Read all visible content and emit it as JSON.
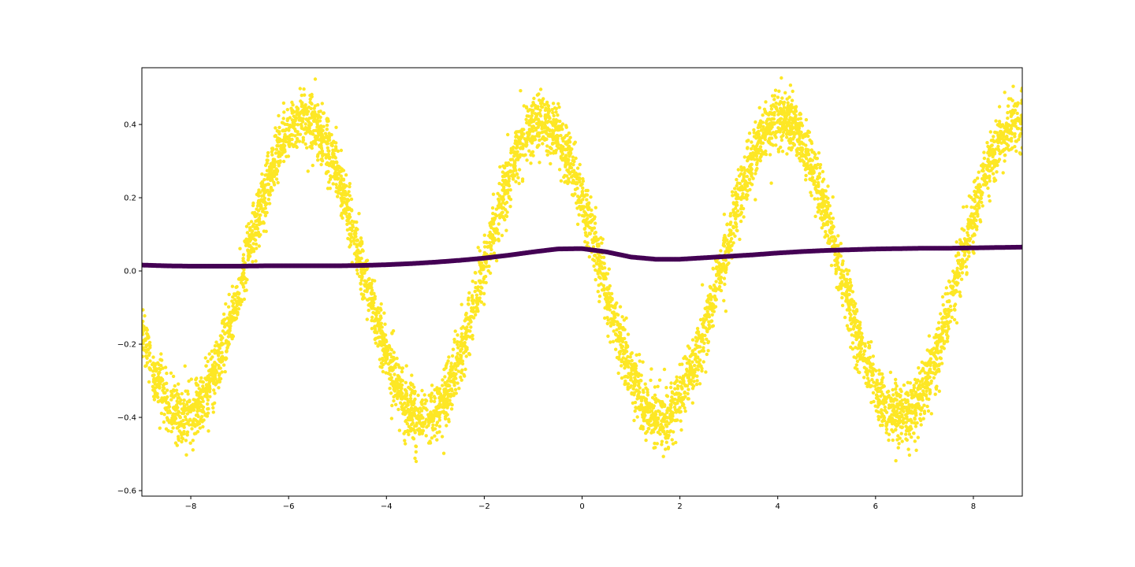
{
  "chart_data": {
    "type": "scatter",
    "title": "",
    "xlabel": "",
    "ylabel": "",
    "xlim": [
      -9,
      9
    ],
    "ylim": [
      -0.615,
      0.555
    ],
    "grid": false,
    "legend": "none",
    "x_ticks": [
      {
        "value": -8,
        "label": "−8"
      },
      {
        "value": -6,
        "label": "−6"
      },
      {
        "value": -4,
        "label": "−4"
      },
      {
        "value": -2,
        "label": "−2"
      },
      {
        "value": 0,
        "label": "0"
      },
      {
        "value": 2,
        "label": "2"
      },
      {
        "value": 4,
        "label": "4"
      },
      {
        "value": 6,
        "label": "6"
      },
      {
        "value": 8,
        "label": "8"
      }
    ],
    "y_ticks": [
      {
        "value": -0.6,
        "label": "−0.6"
      },
      {
        "value": -0.4,
        "label": "−0.4"
      },
      {
        "value": -0.2,
        "label": "−0.2"
      },
      {
        "value": 0.0,
        "label": "0.0"
      },
      {
        "value": 0.2,
        "label": "0.2"
      },
      {
        "value": 0.4,
        "label": "0.4"
      }
    ],
    "series": [
      {
        "color": "#fde725",
        "marker": "dot",
        "description_shape": "noisy sine",
        "x": [
          -9.0,
          -8.75,
          -8.5,
          -8.25,
          -8.0,
          -7.75,
          -7.5,
          -7.25,
          -7.0,
          -6.75,
          -6.5,
          -6.25,
          -6.0,
          -5.75,
          -5.5,
          -5.25,
          -5.0,
          -4.75,
          -4.5,
          -4.25,
          -4.0,
          -3.75,
          -3.5,
          -3.25,
          -3.0,
          -2.75,
          -2.5,
          -2.25,
          -2.0,
          -1.75,
          -1.5,
          -1.25,
          -1.0,
          -0.75,
          -0.5,
          -0.25,
          0.0,
          0.25,
          0.5,
          0.75,
          1.0,
          1.25,
          1.5,
          1.75,
          2.0,
          2.25,
          2.5,
          2.75,
          3.0,
          3.25,
          3.5,
          3.75,
          4.0,
          4.25,
          4.5,
          4.75,
          5.0,
          5.25,
          5.5,
          5.75,
          6.0,
          6.25,
          6.5,
          6.75,
          7.0,
          7.25,
          7.5,
          7.75,
          8.0,
          8.25,
          8.5,
          8.75,
          9.0
        ],
        "y": [
          -0.165,
          -0.283,
          -0.36,
          -0.398,
          -0.396,
          -0.356,
          -0.279,
          -0.172,
          -0.046,
          0.087,
          0.211,
          0.314,
          0.384,
          0.416,
          0.405,
          0.353,
          0.264,
          0.146,
          0.015,
          -0.116,
          -0.234,
          -0.329,
          -0.389,
          -0.409,
          -0.387,
          -0.325,
          -0.23,
          -0.112,
          0.017,
          0.144,
          0.257,
          0.345,
          0.397,
          0.407,
          0.374,
          0.302,
          0.197,
          0.073,
          -0.056,
          -0.179,
          -0.285,
          -0.363,
          -0.399,
          -0.395,
          -0.351,
          -0.272,
          -0.165,
          -0.041,
          0.089,
          0.212,
          0.314,
          0.386,
          0.418,
          0.408,
          0.355,
          0.266,
          0.15,
          0.018,
          -0.112,
          -0.23,
          -0.323,
          -0.384,
          -0.404,
          -0.382,
          -0.32,
          -0.225,
          -0.106,
          0.022,
          0.149,
          0.261,
          0.348,
          0.399,
          0.409
        ],
        "noise_sd": 0.04
      },
      {
        "color": "#440154",
        "marker": "dot",
        "description_shape": "smooth curve",
        "x": [
          -9.0,
          -8.5,
          -8.0,
          -7.5,
          -7.0,
          -6.5,
          -6.0,
          -5.5,
          -5.0,
          -4.5,
          -4.0,
          -3.5,
          -3.0,
          -2.5,
          -2.0,
          -1.5,
          -1.0,
          -0.5,
          0.0,
          0.5,
          1.0,
          1.5,
          2.0,
          2.5,
          3.0,
          3.5,
          4.0,
          4.5,
          5.0,
          5.5,
          6.0,
          6.5,
          7.0,
          7.5,
          8.0,
          8.5,
          9.0
        ],
        "y": [
          0.016,
          0.014,
          0.013,
          0.013,
          0.013,
          0.014,
          0.014,
          0.014,
          0.014,
          0.015,
          0.017,
          0.02,
          0.024,
          0.029,
          0.035,
          0.043,
          0.052,
          0.06,
          0.061,
          0.052,
          0.038,
          0.032,
          0.032,
          0.036,
          0.04,
          0.044,
          0.049,
          0.053,
          0.056,
          0.058,
          0.06,
          0.061,
          0.062,
          0.062,
          0.063,
          0.064,
          0.065
        ]
      }
    ]
  }
}
